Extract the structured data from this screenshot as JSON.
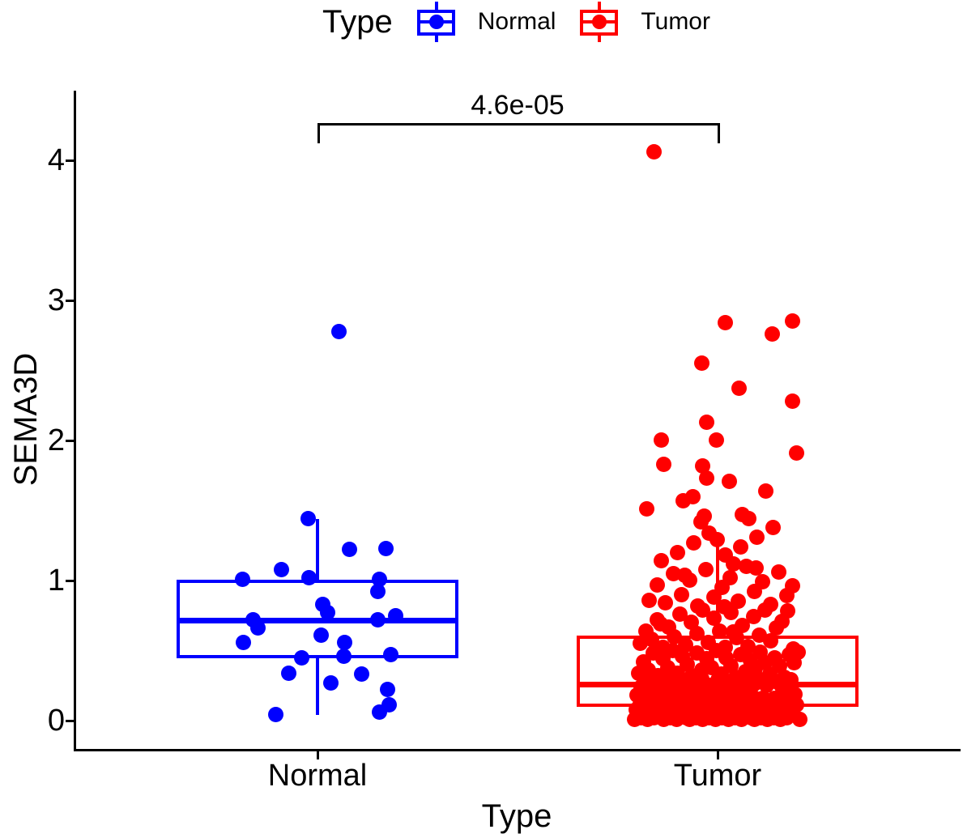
{
  "legend": {
    "title": "Type",
    "items": [
      {
        "label": "Normal",
        "color": "#0000FF"
      },
      {
        "label": "Tumor",
        "color": "#FF0000"
      }
    ]
  },
  "chart_data": {
    "type": "boxplot+jitter",
    "title": "",
    "xlabel": "Type",
    "ylabel": "SEMA3D",
    "categories": [
      "Normal",
      "Tumor"
    ],
    "ylim": [
      -0.2,
      4.5
    ],
    "yticks": [
      0,
      1,
      2,
      3,
      4
    ],
    "ytick_labels": [
      "0",
      "1",
      "2",
      "3",
      "4"
    ],
    "grid": "off",
    "legend_position": "top",
    "significance": {
      "groups": [
        "Normal",
        "Tumor"
      ],
      "label": "4.6e-05",
      "bracket_y": 4.27
    },
    "series": [
      {
        "name": "Normal",
        "color": "#0000FF",
        "box": {
          "q1": 0.445,
          "median": 0.72,
          "q3": 1.01,
          "whisker_low": 0.04,
          "whisker_high": 1.44
        },
        "points": [
          [
            27,
            2.78
          ],
          [
            -11,
            1.44
          ],
          [
            85,
            1.23
          ],
          [
            40,
            1.22
          ],
          [
            -44,
            1.08
          ],
          [
            -10,
            1.02
          ],
          [
            77,
            1.01
          ],
          [
            -92,
            1.01
          ],
          [
            75,
            0.92
          ],
          [
            7,
            0.83
          ],
          [
            13,
            0.77
          ],
          [
            97,
            0.75
          ],
          [
            -79,
            0.72
          ],
          [
            75,
            0.72
          ],
          [
            -73,
            0.66
          ],
          [
            5,
            0.61
          ],
          [
            -91,
            0.56
          ],
          [
            34,
            0.56
          ],
          [
            91,
            0.47
          ],
          [
            33,
            0.46
          ],
          [
            -19,
            0.45
          ],
          [
            -35,
            0.34
          ],
          [
            55,
            0.33
          ],
          [
            17,
            0.27
          ],
          [
            87,
            0.22
          ],
          [
            89,
            0.11
          ],
          [
            77,
            0.06
          ],
          [
            -51,
            0.04
          ]
        ]
      },
      {
        "name": "Tumor",
        "color": "#FF0000",
        "box": {
          "q1": 0.1,
          "median": 0.26,
          "q3": 0.61,
          "whisker_low": 0.005,
          "whisker_high": 1.34
        },
        "points": [
          [
            -78,
            4.06
          ],
          [
            93,
            2.85
          ],
          [
            10,
            2.84
          ],
          [
            68,
            2.76
          ],
          [
            -19,
            2.55
          ],
          [
            27,
            2.37
          ],
          [
            93,
            2.28
          ],
          [
            -13,
            2.13
          ],
          [
            -69,
            2.0
          ],
          [
            -1,
            2.0
          ],
          [
            98,
            1.91
          ],
          [
            -66,
            1.83
          ],
          [
            -18,
            1.82
          ],
          [
            -13,
            1.73
          ],
          [
            15,
            1.71
          ],
          [
            60,
            1.64
          ],
          [
            -30,
            1.6
          ],
          [
            -42,
            1.57
          ],
          [
            -87,
            1.51
          ],
          [
            31,
            1.47
          ],
          [
            -16,
            1.46
          ],
          [
            -69,
            1.14
          ],
          [
            -49,
            1.2
          ],
          [
            -29,
            1.27
          ],
          [
            -10,
            1.34
          ],
          [
            10,
            1.18
          ],
          [
            29,
            1.24
          ],
          [
            49,
            1.31
          ],
          [
            69,
            1.38
          ],
          [
            -20,
            1.42
          ],
          [
            20,
            1.12
          ],
          [
            39,
            1.44
          ],
          [
            0,
            1.29
          ],
          [
            -84,
            0.86
          ],
          [
            -74,
            0.97
          ],
          [
            -64,
            0.84
          ],
          [
            -54,
            1.05
          ],
          [
            -44,
            0.9
          ],
          [
            -34,
            1.0
          ],
          [
            -24,
            0.82
          ],
          [
            -14,
            1.08
          ],
          [
            -4,
            0.88
          ],
          [
            6,
            0.95
          ],
          [
            16,
            1.02
          ],
          [
            26,
            0.85
          ],
          [
            36,
            1.1
          ],
          [
            46,
            0.92
          ],
          [
            56,
            0.99
          ],
          [
            66,
            0.83
          ],
          [
            76,
            1.06
          ],
          [
            86,
            0.89
          ],
          [
            -40,
            1.04
          ],
          [
            9,
            0.81
          ],
          [
            48,
            1.09
          ],
          [
            93,
            0.96
          ],
          [
            -95,
            0.55
          ],
          [
            -88,
            0.64
          ],
          [
            -81,
            0.58
          ],
          [
            -74,
            0.72
          ],
          [
            -67,
            0.52
          ],
          [
            -60,
            0.67
          ],
          [
            -53,
            0.6
          ],
          [
            -46,
            0.76
          ],
          [
            -39,
            0.54
          ],
          [
            -32,
            0.7
          ],
          [
            -25,
            0.62
          ],
          [
            -18,
            0.79
          ],
          [
            -11,
            0.56
          ],
          [
            -4,
            0.73
          ],
          [
            3,
            0.64
          ],
          [
            10,
            0.52
          ],
          [
            17,
            0.77
          ],
          [
            24,
            0.59
          ],
          [
            31,
            0.68
          ],
          [
            38,
            0.53
          ],
          [
            45,
            0.74
          ],
          [
            52,
            0.61
          ],
          [
            59,
            0.79
          ],
          [
            66,
            0.57
          ],
          [
            73,
            0.66
          ],
          [
            80,
            0.71
          ],
          [
            87,
            0.78
          ],
          [
            94,
            0.51
          ],
          [
            -70,
            0.69
          ],
          [
            20,
            0.63
          ],
          [
            -97,
            0.34
          ],
          [
            -91,
            0.42
          ],
          [
            -85,
            0.36
          ],
          [
            -79,
            0.48
          ],
          [
            -73,
            0.32
          ],
          [
            -67,
            0.44
          ],
          [
            -61,
            0.38
          ],
          [
            -55,
            0.5
          ],
          [
            -49,
            0.34
          ],
          [
            -43,
            0.46
          ],
          [
            -37,
            0.4
          ],
          [
            -31,
            0.32
          ],
          [
            -25,
            0.48
          ],
          [
            -19,
            0.36
          ],
          [
            -13,
            0.44
          ],
          [
            -7,
            0.38
          ],
          [
            -1,
            0.5
          ],
          [
            5,
            0.33
          ],
          [
            11,
            0.45
          ],
          [
            17,
            0.39
          ],
          [
            23,
            0.31
          ],
          [
            29,
            0.47
          ],
          [
            35,
            0.35
          ],
          [
            41,
            0.43
          ],
          [
            47,
            0.37
          ],
          [
            53,
            0.49
          ],
          [
            59,
            0.41
          ],
          [
            65,
            0.33
          ],
          [
            71,
            0.45
          ],
          [
            77,
            0.39
          ],
          [
            83,
            0.31
          ],
          [
            89,
            0.47
          ],
          [
            95,
            0.41
          ],
          [
            100,
            0.49
          ],
          [
            -88,
            0.35
          ],
          [
            -99,
            0.18
          ],
          [
            -94,
            0.24
          ],
          [
            -89,
            0.2
          ],
          [
            -84,
            0.28
          ],
          [
            -79,
            0.16
          ],
          [
            -74,
            0.22
          ],
          [
            -69,
            0.26
          ],
          [
            -64,
            0.18
          ],
          [
            -59,
            0.3
          ],
          [
            -54,
            0.2
          ],
          [
            -49,
            0.24
          ],
          [
            -44,
            0.17
          ],
          [
            -39,
            0.28
          ],
          [
            -34,
            0.22
          ],
          [
            -29,
            0.26
          ],
          [
            -24,
            0.18
          ],
          [
            -19,
            0.3
          ],
          [
            -14,
            0.21
          ],
          [
            -9,
            0.25
          ],
          [
            -4,
            0.17
          ],
          [
            1,
            0.29
          ],
          [
            6,
            0.23
          ],
          [
            11,
            0.19
          ],
          [
            16,
            0.27
          ],
          [
            21,
            0.16
          ],
          [
            26,
            0.24
          ],
          [
            31,
            0.2
          ],
          [
            36,
            0.28
          ],
          [
            41,
            0.22
          ],
          [
            46,
            0.26
          ],
          [
            51,
            0.3
          ],
          [
            56,
            0.16
          ],
          [
            61,
            0.25
          ],
          [
            66,
            0.29
          ],
          [
            71,
            0.16
          ],
          [
            76,
            0.27
          ],
          [
            81,
            0.21
          ],
          [
            86,
            0.25
          ],
          [
            91,
            0.29
          ],
          [
            96,
            0.19
          ],
          [
            -100,
            0.08
          ],
          [
            -95,
            0.12
          ],
          [
            -91,
            0.06
          ],
          [
            -86,
            0.1
          ],
          [
            -82,
            0.14
          ],
          [
            -77,
            0.07
          ],
          [
            -73,
            0.11
          ],
          [
            -68,
            0.09
          ],
          [
            -64,
            0.13
          ],
          [
            -59,
            0.06
          ],
          [
            -55,
            0.1
          ],
          [
            -50,
            0.14
          ],
          [
            -46,
            0.08
          ],
          [
            -41,
            0.12
          ],
          [
            -37,
            0.06
          ],
          [
            -32,
            0.1
          ],
          [
            -28,
            0.14
          ],
          [
            -23,
            0.07
          ],
          [
            -19,
            0.11
          ],
          [
            -14,
            0.09
          ],
          [
            -10,
            0.13
          ],
          [
            -5,
            0.06
          ],
          [
            -1,
            0.1
          ],
          [
            4,
            0.14
          ],
          [
            8,
            0.08
          ],
          [
            13,
            0.12
          ],
          [
            17,
            0.06
          ],
          [
            22,
            0.1
          ],
          [
            26,
            0.15
          ],
          [
            31,
            0.07
          ],
          [
            35,
            0.11
          ],
          [
            40,
            0.09
          ],
          [
            44,
            0.13
          ],
          [
            49,
            0.15
          ],
          [
            53,
            0.09
          ],
          [
            58,
            0.15
          ],
          [
            62,
            0.08
          ],
          [
            67,
            0.13
          ],
          [
            71,
            0.07
          ],
          [
            76,
            0.15
          ],
          [
            80,
            0.09
          ],
          [
            85,
            0.07
          ],
          [
            89,
            0.12
          ],
          [
            94,
            0.15
          ],
          [
            98,
            0.11
          ],
          [
            -102,
            0.01
          ],
          [
            -98,
            0.03
          ],
          [
            -94,
            0.02
          ],
          [
            -90,
            0.05
          ],
          [
            -86,
            0.01
          ],
          [
            -82,
            0.04
          ],
          [
            -78,
            0.02
          ],
          [
            -74,
            0.03
          ],
          [
            -70,
            0.05
          ],
          [
            -66,
            0.01
          ],
          [
            -62,
            0.03
          ],
          [
            -58,
            0.02
          ],
          [
            -54,
            0.04
          ],
          [
            -50,
            0.01
          ],
          [
            -46,
            0.03
          ],
          [
            -42,
            0.05
          ],
          [
            -38,
            0.02
          ],
          [
            -34,
            0.01
          ],
          [
            -30,
            0.04
          ],
          [
            -26,
            0.02
          ],
          [
            -22,
            0.03
          ],
          [
            -18,
            0.01
          ],
          [
            -14,
            0.05
          ],
          [
            -10,
            0.02
          ],
          [
            -6,
            0.04
          ],
          [
            -2,
            0.01
          ],
          [
            2,
            0.03
          ],
          [
            6,
            0.02
          ],
          [
            10,
            0.05
          ],
          [
            14,
            0.01
          ],
          [
            18,
            0.03
          ],
          [
            22,
            0.02
          ],
          [
            26,
            0.04
          ],
          [
            30,
            0.01
          ],
          [
            34,
            0.03
          ],
          [
            38,
            0.05
          ],
          [
            42,
            0.02
          ],
          [
            46,
            0.01
          ],
          [
            50,
            0.04
          ],
          [
            54,
            0.02
          ],
          [
            58,
            0.03
          ],
          [
            62,
            0.01
          ],
          [
            66,
            0.05
          ],
          [
            70,
            0.02
          ],
          [
            74,
            0.04
          ],
          [
            78,
            0.01
          ],
          [
            82,
            0.03
          ],
          [
            86,
            0.02
          ],
          [
            94,
            0.04
          ],
          [
            102,
            0.01
          ]
        ]
      }
    ]
  }
}
